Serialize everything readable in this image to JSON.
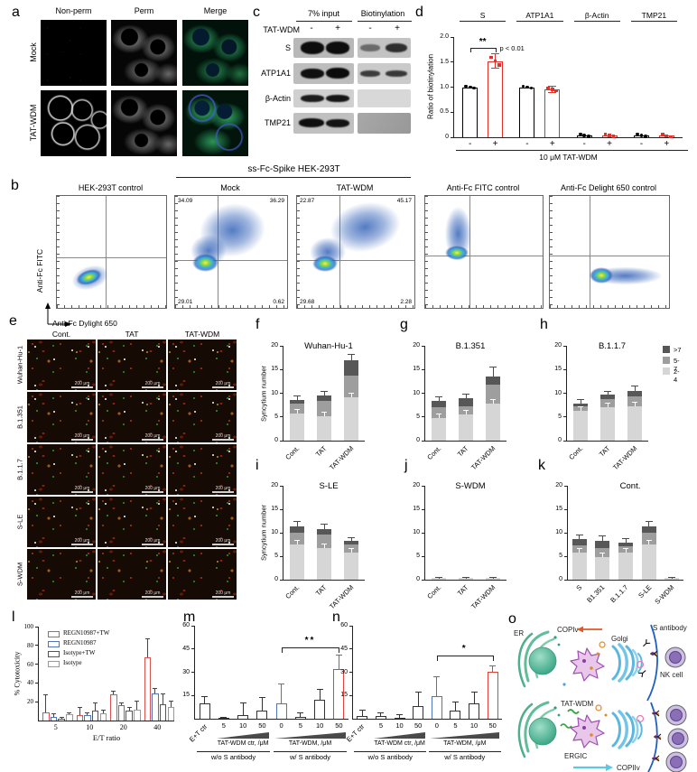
{
  "figure": {
    "panel_letters": {
      "a": "a",
      "b": "b",
      "c": "c",
      "d": "d",
      "e": "e",
      "f": "f",
      "g": "g",
      "h": "h",
      "i": "i",
      "j": "j",
      "k": "k",
      "l": "l",
      "m": "m",
      "n": "n",
      "o": "o"
    }
  },
  "panel_a": {
    "col_headers": [
      "Non-perm",
      "Perm",
      "Merge"
    ],
    "row_headers": [
      "Mock",
      "TAT-WDM"
    ]
  },
  "panel_b": {
    "span_header": "ss-Fc-Spike HEK-293T",
    "ylabel": "Anti-Fc FITC",
    "xlabel": "Anti-Fc Dylight 650",
    "plots": [
      {
        "title": "HEK-293T control"
      },
      {
        "title": "Mock",
        "quads": {
          "ul": "34.09",
          "ur": "36.29",
          "ll": "29.01",
          "lr": "0.62"
        }
      },
      {
        "title": "TAT-WDM",
        "quads": {
          "ul": "22.87",
          "ur": "45.17",
          "ll": "29.68",
          "lr": "2.28"
        }
      },
      {
        "title": "Anti-Fc FITC control"
      },
      {
        "title": "Anti-Fc Delight 650 control"
      }
    ]
  },
  "panel_c": {
    "headers": [
      "7% input",
      "Biotinylation"
    ],
    "lane_label": "TAT-WDM",
    "lane_signs": [
      "-",
      "+",
      "-",
      "+"
    ],
    "rows": [
      "S",
      "ATP1A1",
      "β-Actin",
      "TMP21"
    ]
  },
  "panel_e": {
    "axis_label": "Anti-Fc Dylight 650",
    "col_headers": [
      "Cont.",
      "TAT",
      "TAT-WDM"
    ],
    "row_headers": [
      "Wuhan-Hu-1",
      "B.1.351",
      "B.1.1.7",
      "S-LE",
      "S-WDM"
    ],
    "scale_bar": "200 μm"
  },
  "panel_o": {
    "er": "ER",
    "copiv": "COPIv",
    "golgi": "Golgi",
    "s_antibody": "S antibody",
    "nk_cell": "NK cell",
    "tat_wdm": "TAT-WDM",
    "ergic": "ERGIC",
    "copiiv": "COPIIv"
  },
  "chart_data": [
    {
      "id": "d",
      "type": "bar",
      "ylabel": "Ratio of biotinylation",
      "ylim": [
        0,
        2
      ],
      "yticks": [
        "0",
        "0.5",
        "1.0",
        "1.5",
        "2.0"
      ],
      "groups": [
        "S",
        "ATP1A1",
        "β-Actin",
        "TMP21"
      ],
      "pair_labels": [
        "-",
        "+"
      ],
      "values": [
        [
          1.0,
          1.52
        ],
        [
          1.0,
          0.95
        ],
        [
          0.04,
          0.04
        ],
        [
          0.04,
          0.03
        ]
      ],
      "errors": [
        [
          0,
          0.15
        ],
        [
          0,
          0.06
        ],
        [
          0,
          0
        ],
        [
          0,
          0
        ]
      ],
      "colors": [
        "#000000",
        "#e0312a"
      ],
      "xlabel": "10 μM TAT-WDM",
      "sig": {
        "label": "**",
        "note": "p < 0.01",
        "y": 1.78
      }
    },
    {
      "id": "f",
      "type": "stacked-bar",
      "title": "Wuhan-Hu-1",
      "ylabel": "Syncytium number",
      "ylim": [
        0,
        20
      ],
      "yticks": [
        0,
        5,
        10,
        15,
        20
      ],
      "legend": [
        ">7",
        "5-7",
        "2-4"
      ],
      "legend_colors": [
        "#575757",
        "#9e9e9e",
        "#d6d6d6"
      ],
      "segment_names": [
        "2-4",
        "5-7",
        ">7"
      ],
      "segment_colors": [
        "#d6d6d6",
        "#9e9e9e",
        "#575757"
      ],
      "bars": [
        {
          "category": "Cont.",
          "segments": [
            5.7,
            2.1,
            0.8
          ],
          "err": 0.9
        },
        {
          "category": "TAT",
          "segments": [
            5.2,
            3.1,
            1.2
          ],
          "err": 0.9
        },
        {
          "category": "TAT-WDM",
          "segments": [
            9.2,
            4.5,
            3.3
          ],
          "err": 1.1
        }
      ]
    },
    {
      "id": "g",
      "type": "stacked-bar",
      "title": "B.1.351",
      "ylabel": "",
      "ylim": [
        0,
        20
      ],
      "yticks": [
        0,
        5,
        10,
        15,
        20
      ],
      "segment_names": [
        "2-4",
        "5-7",
        ">7"
      ],
      "segment_colors": [
        "#d6d6d6",
        "#9e9e9e",
        "#575757"
      ],
      "bars": [
        {
          "category": "Cont.",
          "segments": [
            4.8,
            2.2,
            1.3
          ],
          "err": 1.0
        },
        {
          "category": "TAT",
          "segments": [
            5.5,
            1.8,
            1.7
          ],
          "err": 0.8
        },
        {
          "category": "TAT-WDM",
          "segments": [
            7.8,
            4.0,
            1.7
          ],
          "err": 2.0
        }
      ]
    },
    {
      "id": "h",
      "type": "stacked-bar",
      "title": "B.1.1.7",
      "ylabel": "",
      "show_legend": true,
      "ylim": [
        0,
        20
      ],
      "yticks": [
        0,
        5,
        10,
        15,
        20
      ],
      "legend": [
        ">7",
        "5-7",
        "2-4"
      ],
      "legend_colors": [
        "#575757",
        "#9e9e9e",
        "#d6d6d6"
      ],
      "segment_names": [
        "2-4",
        "5-7",
        ">7"
      ],
      "segment_colors": [
        "#d6d6d6",
        "#9e9e9e",
        "#575757"
      ],
      "bars": [
        {
          "category": "Cont.",
          "segments": [
            6.2,
            1.0,
            0.7
          ],
          "err": 0.7
        },
        {
          "category": "TAT",
          "segments": [
            7.0,
            1.7,
            1.0
          ],
          "err": 0.7
        },
        {
          "category": "TAT-WDM",
          "segments": [
            7.2,
            2.1,
            1.2
          ],
          "err": 1.0
        }
      ]
    },
    {
      "id": "i",
      "type": "stacked-bar",
      "title": "S-LE",
      "ylabel": "Syncytium number",
      "ylim": [
        0,
        20
      ],
      "yticks": [
        0,
        5,
        10,
        15,
        20
      ],
      "segment_names": [
        "2-4",
        "5-7",
        ">7"
      ],
      "segment_colors": [
        "#d6d6d6",
        "#9e9e9e",
        "#575757"
      ],
      "bars": [
        {
          "category": "Cont.",
          "segments": [
            7.5,
            2.5,
            1.3
          ],
          "err": 1.1
        },
        {
          "category": "TAT",
          "segments": [
            6.7,
            3.0,
            1.1
          ],
          "err": 1.0
        },
        {
          "category": "TAT-WDM",
          "segments": [
            5.8,
            1.7,
            0.8
          ],
          "err": 0.7
        }
      ]
    },
    {
      "id": "j",
      "type": "stacked-bar",
      "title": "S-WDM",
      "ylabel": "",
      "ylim": [
        0,
        20
      ],
      "yticks": [
        0,
        5,
        10,
        15,
        20
      ],
      "segment_names": [
        "2-4",
        "5-7",
        ">7"
      ],
      "segment_colors": [
        "#d6d6d6",
        "#9e9e9e",
        "#575757"
      ],
      "bars": [
        {
          "category": "Cont.",
          "segments": [
            0.3,
            0,
            0
          ],
          "err": 0.1
        },
        {
          "category": "TAT",
          "segments": [
            0.3,
            0,
            0
          ],
          "err": 0.1
        },
        {
          "category": "TAT-WDM",
          "segments": [
            0.3,
            0,
            0
          ],
          "err": 0.1
        }
      ]
    },
    {
      "id": "k",
      "type": "stacked-bar",
      "title": "Cont.",
      "ylabel": "",
      "ylim": [
        0,
        20
      ],
      "yticks": [
        0,
        5,
        10,
        15,
        20
      ],
      "segment_names": [
        "2-4",
        "5-7",
        ">7"
      ],
      "segment_colors": [
        "#d6d6d6",
        "#9e9e9e",
        "#575757"
      ],
      "bars": [
        {
          "category": "S",
          "segments": [
            5.7,
            1.6,
            1.3
          ],
          "err": 0.9
        },
        {
          "category": "B1.351",
          "segments": [
            4.8,
            2.0,
            1.5
          ],
          "err": 1.0
        },
        {
          "category": "B.1.1.7",
          "segments": [
            5.8,
            1.4,
            0.7
          ],
          "err": 0.8
        },
        {
          "category": "S-LE",
          "segments": [
            7.5,
            2.5,
            1.3
          ],
          "err": 1.1
        },
        {
          "category": "S-WDM",
          "segments": [
            0.3,
            0,
            0
          ],
          "err": 0.1
        }
      ]
    },
    {
      "id": "l",
      "type": "grouped-bar",
      "categories": [
        "5",
        "10",
        "20",
        "40"
      ],
      "xlabel": "E/T ratio",
      "ylabel": "% Cytotoxicity",
      "ylim": [
        0,
        100
      ],
      "yticks": [
        20,
        40,
        60,
        80,
        100
      ],
      "series": [
        {
          "name": "REGN10987+TW",
          "color": "#d9534f",
          "values": [
            9,
            6,
            28,
            67
          ],
          "errors": [
            18,
            8,
            3,
            20
          ]
        },
        {
          "name": "REGN10987",
          "color": "#4f74b8",
          "values": [
            4,
            6,
            16,
            29
          ],
          "errors": [
            3,
            2,
            2.5,
            5
          ]
        },
        {
          "name": "Isotype+TW",
          "color": "#555555",
          "values": [
            2,
            11,
            11,
            17
          ],
          "errors": [
            1.5,
            8,
            3,
            11
          ]
        },
        {
          "name": "Isotype",
          "color": "#999999",
          "values": [
            6.5,
            8,
            12,
            14
          ],
          "errors": [
            1.5,
            3,
            9,
            7
          ]
        }
      ]
    },
    {
      "id": "m",
      "type": "bar",
      "ylim": [
        0,
        60
      ],
      "yticks": [
        15,
        30,
        45,
        60
      ],
      "bars": [
        {
          "label": "E+T ctr",
          "value": 10,
          "err": 4.5,
          "color": "#333333",
          "rotate": true
        },
        {
          "label": "5",
          "value": 0.4,
          "err": 0.3,
          "color": "#333333"
        },
        {
          "label": "10",
          "value": 2.5,
          "err": 7.5,
          "color": "#333333"
        },
        {
          "label": "50",
          "value": 5.5,
          "err": 8,
          "color": "#333333"
        },
        {
          "label": "0",
          "value": 10,
          "err": 12.5,
          "color": "#4f74b8"
        },
        {
          "label": "5",
          "value": 1,
          "err": 3,
          "color": "#333333"
        },
        {
          "label": "10",
          "value": 12,
          "err": 7,
          "color": "#333333"
        },
        {
          "label": "50",
          "value": 32,
          "err": 9,
          "color": "#e0413a"
        }
      ],
      "sig": {
        "label": "**",
        "from": 4,
        "to": 7,
        "y": 46
      },
      "ramps": [
        {
          "from": 1,
          "to": 3,
          "label": "TAT-WDM ctr, /μM"
        },
        {
          "from": 4,
          "to": 7,
          "label": "TAT-WDM,  /μM"
        }
      ],
      "footer": [
        {
          "from": 0,
          "to": 3,
          "label": "w/o S antibody"
        },
        {
          "from": 4,
          "to": 7,
          "label": "w/ S antibody"
        }
      ]
    },
    {
      "id": "n",
      "type": "bar",
      "ylim": [
        0,
        60
      ],
      "yticks": [
        15,
        30,
        45,
        60
      ],
      "bars": [
        {
          "label": "E+T ctr",
          "value": 2,
          "err": 3.5,
          "color": "#333333",
          "rotate": true
        },
        {
          "label": "5",
          "value": 2,
          "err": 2,
          "color": "#333333"
        },
        {
          "label": "10",
          "value": 0.5,
          "err": 2,
          "color": "#333333"
        },
        {
          "label": "50",
          "value": 8,
          "err": 9,
          "color": "#333333"
        },
        {
          "label": "0",
          "value": 14.5,
          "err": 12.5,
          "color": "#4f74b8"
        },
        {
          "label": "5",
          "value": 5,
          "err": 5.5,
          "color": "#333333"
        },
        {
          "label": "10",
          "value": 10,
          "err": 7,
          "color": "#333333"
        },
        {
          "label": "50",
          "value": 30.5,
          "err": 3.5,
          "color": "#e0413a"
        }
      ],
      "sig": {
        "label": "*",
        "from": 4,
        "to": 7,
        "y": 41
      },
      "ramps": [
        {
          "from": 1,
          "to": 3,
          "label": "TAT-WDM ctr, /μM"
        },
        {
          "from": 4,
          "to": 7,
          "label": "TAT-WDM,  /μM"
        }
      ],
      "footer": [
        {
          "from": 0,
          "to": 3,
          "label": "w/o S antibody"
        },
        {
          "from": 4,
          "to": 7,
          "label": "w/ S antibody"
        }
      ]
    }
  ]
}
